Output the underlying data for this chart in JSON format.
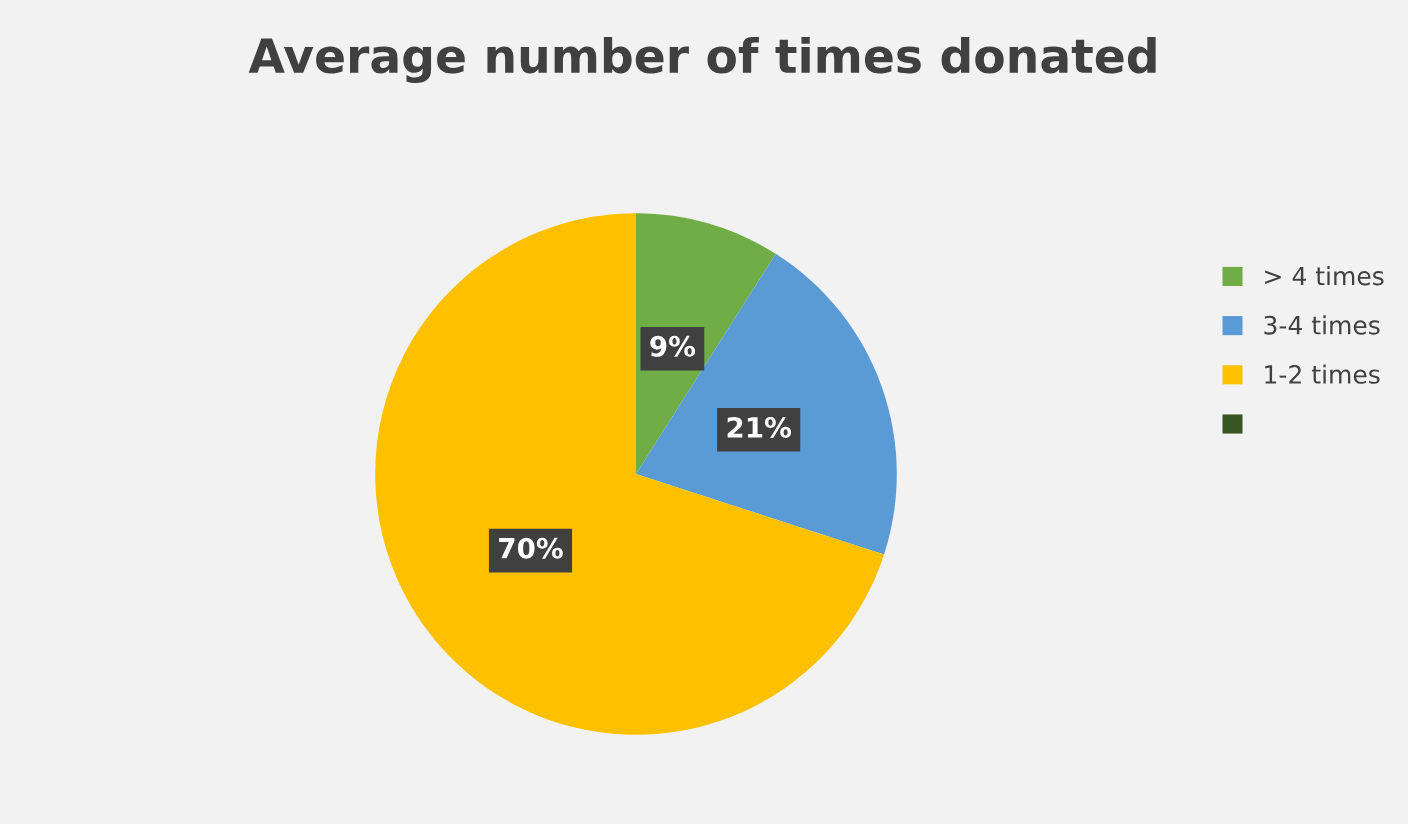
{
  "chart_data": {
    "type": "pie",
    "title": "Average number of times donated",
    "categories": [
      "> 4 times",
      "3-4 times",
      "1-2 times",
      null
    ],
    "values": [
      9,
      21,
      70,
      0
    ],
    "colors": [
      "#70ad47",
      "#5b9bd5",
      "#ffc000",
      "#375623"
    ],
    "value_labels": [
      "9%",
      "21%",
      "70%",
      null
    ],
    "legend": "right"
  }
}
